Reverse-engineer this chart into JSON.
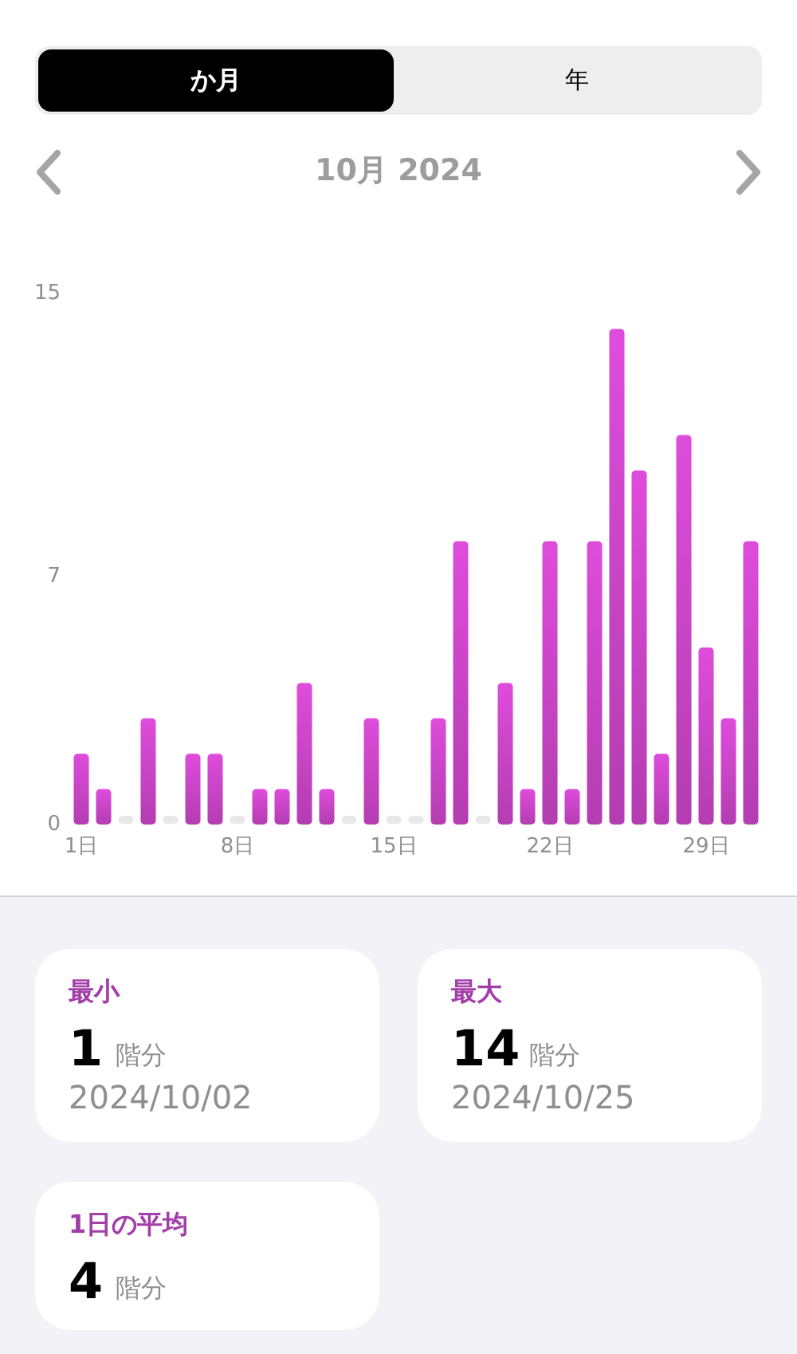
{
  "chart_data": [
    {
      "type": "bar",
      "title": "10月 2024",
      "categories": [
        "1日",
        null,
        null,
        null,
        null,
        null,
        null,
        "8日",
        null,
        null,
        null,
        null,
        null,
        null,
        "15日",
        null,
        null,
        null,
        null,
        null,
        null,
        "22日",
        null,
        null,
        null,
        null,
        null,
        null,
        "29日",
        null,
        null
      ],
      "values": [
        2,
        1,
        0,
        3,
        0,
        2,
        2,
        0,
        1,
        1,
        4,
        1,
        0,
        3,
        0,
        0,
        3,
        8,
        0,
        4,
        1,
        8,
        1,
        8,
        14,
        10,
        2,
        11,
        5,
        3,
        8
      ],
      "colors": [
        "#c443c1",
        "#c443c1",
        "#e8e8ea",
        "#c443c1",
        "#e8e8ea",
        "#c443c1",
        "#c443c1",
        "#e8e8ea",
        "#c443c1",
        "#c443c1",
        "#c443c1",
        "#c443c1",
        "#e8e8ea",
        "#c443c1",
        "#e8e8ea",
        "#e8e8ea",
        "#c443c1",
        "#c443c1",
        "#e8e8ea",
        "#c443c1",
        "#c443c1",
        "#c443c1",
        "#c443c1",
        "#c443c1",
        "#c443c1",
        "#c443c1",
        "#c443c1",
        "#c443c1",
        "#c443c1",
        "#c443c1",
        "#c443c1"
      ],
      "ylim": [
        0,
        15
      ],
      "yticks": [
        0,
        7,
        15
      ],
      "annotations": [
        "か月",
        "年"
      ]
    },
    {
      "type": "other",
      "annotations": [
        "最小",
        "1",
        "階分",
        "2024/10/02",
        "最大",
        "14",
        "階分",
        "2024/10/25",
        "1日の平均",
        "4",
        "階分"
      ]
    }
  ]
}
